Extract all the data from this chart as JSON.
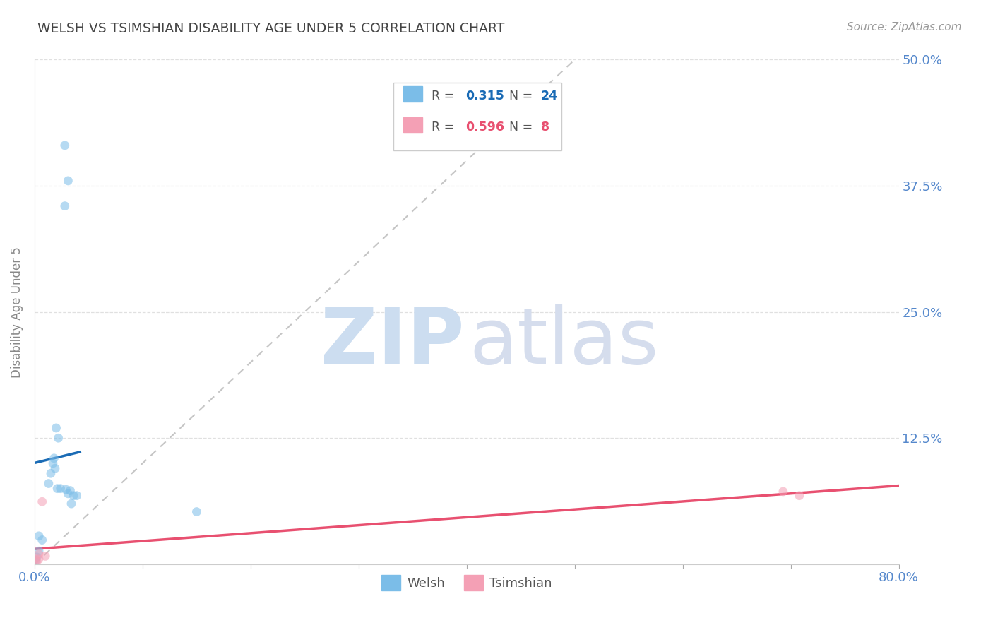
{
  "title": "WELSH VS TSIMSHIAN DISABILITY AGE UNDER 5 CORRELATION CHART",
  "source": "Source: ZipAtlas.com",
  "ylabel": "Disability Age Under 5",
  "xlim": [
    0.0,
    0.8
  ],
  "ylim": [
    0.0,
    0.5
  ],
  "ytick_vals": [
    0.0,
    0.125,
    0.25,
    0.375,
    0.5
  ],
  "ytick_labels": [
    "",
    "12.5%",
    "25.0%",
    "37.5%",
    "50.0%"
  ],
  "xtick_vals": [
    0.0,
    0.1,
    0.2,
    0.3,
    0.4,
    0.5,
    0.6,
    0.7,
    0.8
  ],
  "xtick_labels": [
    "0.0%",
    "",
    "",
    "",
    "",
    "",
    "",
    "",
    "80.0%"
  ],
  "welsh_x": [
    0.028,
    0.031,
    0.028,
    0.02,
    0.022,
    0.018,
    0.017,
    0.019,
    0.015,
    0.013,
    0.021,
    0.024,
    0.029,
    0.033,
    0.031,
    0.036,
    0.039,
    0.034,
    0.004,
    0.007,
    0.004,
    0.002,
    0.001,
    0.15
  ],
  "welsh_y": [
    0.415,
    0.38,
    0.355,
    0.135,
    0.125,
    0.105,
    0.1,
    0.095,
    0.09,
    0.08,
    0.075,
    0.075,
    0.074,
    0.073,
    0.07,
    0.068,
    0.068,
    0.06,
    0.028,
    0.024,
    0.013,
    0.007,
    0.004,
    0.052
  ],
  "tsimshian_x": [
    0.001,
    0.002,
    0.004,
    0.004,
    0.007,
    0.01,
    0.693,
    0.708
  ],
  "tsimshian_y": [
    0.005,
    0.003,
    0.005,
    0.01,
    0.062,
    0.008,
    0.072,
    0.068
  ],
  "welsh_color": "#7bbde8",
  "tsimshian_color": "#f4a0b5",
  "welsh_line_color": "#1a6bb5",
  "tsimshian_line_color": "#e85070",
  "diag_line_color": "#bbbbbb",
  "axis_label_color": "#5588cc",
  "title_color": "#444444",
  "marker_size": 85,
  "marker_alpha": 0.55,
  "grid_color": "#dddddd",
  "background_color": "#ffffff",
  "watermark_zip_color": "#ccddf0",
  "watermark_atlas_color": "#d5dded",
  "legend_border_color": "#cccccc",
  "legend_text_color": "#555555"
}
